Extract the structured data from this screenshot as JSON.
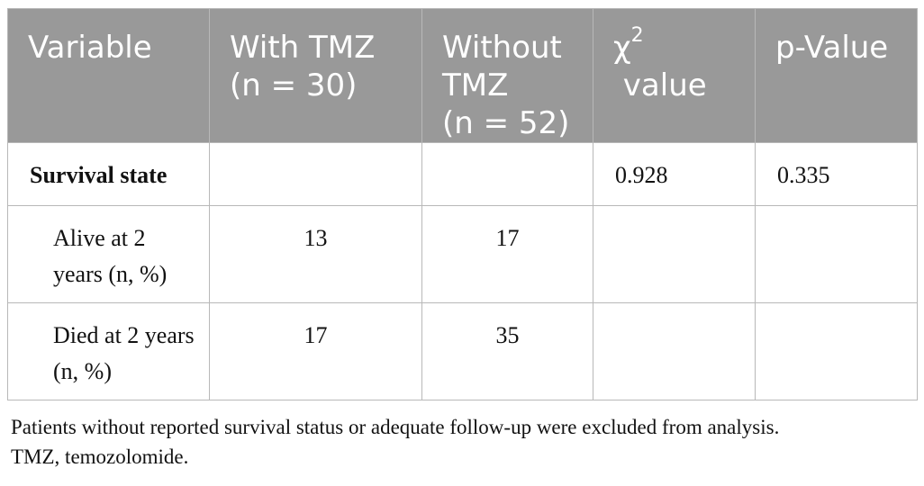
{
  "table": {
    "headers": {
      "variable": "Variable",
      "with_tmz": "With TMZ\n(n = 30)",
      "without_tmz": "Without\nTMZ\n(n = 52)",
      "chi_symbol": "χ",
      "chi_superscript": "2",
      "chi_label": " value",
      "p_value": "p-Value"
    },
    "rows": [
      {
        "label": "Survival state",
        "with_tmz": "",
        "without_tmz": "",
        "chi2": "0.928",
        "p_value": "0.335"
      },
      {
        "label": "Alive at 2 years (n, %)",
        "with_tmz": "13",
        "without_tmz": "17",
        "chi2": "",
        "p_value": ""
      },
      {
        "label": "Died at 2 years (n, %)",
        "with_tmz": "17",
        "without_tmz": "35",
        "chi2": "",
        "p_value": ""
      }
    ]
  },
  "footnote": {
    "line1": "Patients without reported survival status or adequate follow-up were excluded from analysis.",
    "line2": "TMZ, temozolomide."
  }
}
